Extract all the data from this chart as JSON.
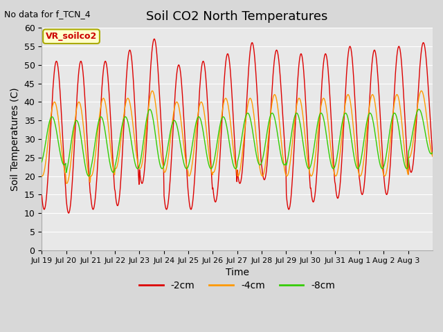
{
  "title": "Soil CO2 North Temperatures",
  "subtitle": "No data for f_TCN_4",
  "xlabel": "Time",
  "ylabel": "Soil Temperatures (C)",
  "ylim": [
    0,
    60
  ],
  "yticks": [
    0,
    5,
    10,
    15,
    20,
    25,
    30,
    35,
    40,
    45,
    50,
    55,
    60
  ],
  "xlabels": [
    "Jul 19",
    "Jul 20",
    "Jul 21",
    "Jul 22",
    "Jul 23",
    "Jul 24",
    "Jul 25",
    "Jul 26",
    "Jul 27",
    "Jul 28",
    "Jul 29",
    "Jul 30",
    "Jul 31",
    "Aug 1",
    "Aug 2",
    "Aug 3"
  ],
  "annotation_text": "VR_soilco2",
  "annotation_bg": "#ffffcc",
  "annotation_border": "#cccc00",
  "colors": {
    "-2cm": "#dd0000",
    "-4cm": "#ff9900",
    "-8cm": "#33cc00"
  },
  "fig_bg_color": "#d8d8d8",
  "plot_bg_color": "#e8e8e8",
  "legend_items": [
    "-2cm",
    "-4cm",
    "-8cm"
  ],
  "n_days": 16,
  "n_per_day": 48,
  "peaks_2cm": [
    51,
    51,
    51,
    54,
    57,
    50,
    51,
    53,
    56,
    54,
    53,
    53,
    55,
    54,
    55,
    56
  ],
  "troughs_2cm": [
    11,
    10,
    11,
    12,
    18,
    11,
    11,
    13,
    18,
    19,
    11,
    13,
    14,
    15,
    15,
    21
  ],
  "peaks_4cm": [
    40,
    40,
    41,
    41,
    43,
    40,
    40,
    41,
    41,
    42,
    41,
    41,
    42,
    42,
    42,
    43
  ],
  "troughs_4cm": [
    20,
    18,
    20,
    22,
    22,
    21,
    20,
    21,
    20,
    20,
    20,
    20,
    20,
    20,
    20,
    25
  ],
  "peaks_8cm": [
    36,
    35,
    36,
    36,
    38,
    35,
    36,
    36,
    37,
    37,
    37,
    37,
    37,
    37,
    37,
    38
  ],
  "troughs_8cm": [
    23,
    20,
    21,
    22,
    22,
    22,
    22,
    22,
    23,
    23,
    22,
    22,
    22,
    22,
    22,
    26
  ],
  "phase_2cm": 0.0,
  "phase_4cm": 0.08,
  "phase_8cm": 0.18
}
